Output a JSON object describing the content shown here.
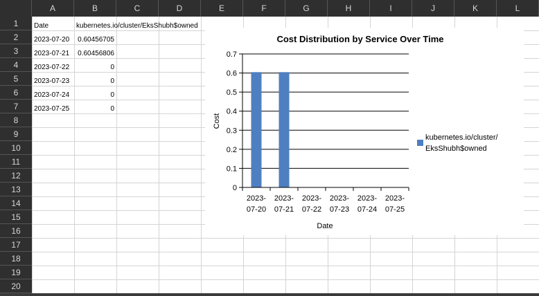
{
  "columns": [
    "A",
    "B",
    "C",
    "D",
    "E",
    "F",
    "G",
    "H",
    "I",
    "J",
    "K",
    "L"
  ],
  "rows": [
    "1",
    "2",
    "3",
    "4",
    "5",
    "6",
    "7",
    "8",
    "9",
    "10",
    "11",
    "12",
    "13",
    "14",
    "15",
    "16",
    "17",
    "18",
    "19",
    "20"
  ],
  "cells": {
    "A1": "Date",
    "B1": "kubernetes.io/cluster/EksShubh$owned",
    "A2": "2023-07-20",
    "B2": "0.60456705",
    "A3": "2023-07-21",
    "B3": "0.60456806",
    "A4": "2023-07-22",
    "B4": "0",
    "A5": "2023-07-23",
    "B5": "0",
    "A6": "2023-07-24",
    "B6": "0",
    "A7": "2023-07-25",
    "B7": "0"
  },
  "colors": {
    "bar": "#4e7fc1",
    "header_bg": "#2f2f2f",
    "header_text": "#d6d6d6",
    "grid": "#d4d4d4"
  },
  "chart_data": {
    "type": "bar",
    "title": "Cost Distribution by Service Over Time",
    "xlabel": "Date",
    "ylabel": "Cost",
    "categories": [
      "2023-07-20",
      "2023-07-21",
      "2023-07-22",
      "2023-07-23",
      "2023-07-24",
      "2023-07-25"
    ],
    "category_lines": [
      [
        "2023-",
        "07-20"
      ],
      [
        "2023-",
        "07-21"
      ],
      [
        "2023-",
        "07-22"
      ],
      [
        "2023-",
        "07-23"
      ],
      [
        "2023-",
        "07-24"
      ],
      [
        "2023-",
        "07-25"
      ]
    ],
    "series": [
      {
        "name": "kubernetes.io/cluster/EksShubh$owned",
        "values": [
          0.60456705,
          0.60456806,
          0,
          0,
          0,
          0
        ]
      }
    ],
    "legend_lines": [
      "kubernetes.io/cluster/",
      "EksShubh$owned"
    ],
    "ylim": [
      0,
      0.7
    ],
    "yticks": [
      "0",
      "0.1",
      "0.2",
      "0.3",
      "0.4",
      "0.5",
      "0.6",
      "0.7"
    ],
    "grid": true,
    "legend_position": "right"
  }
}
